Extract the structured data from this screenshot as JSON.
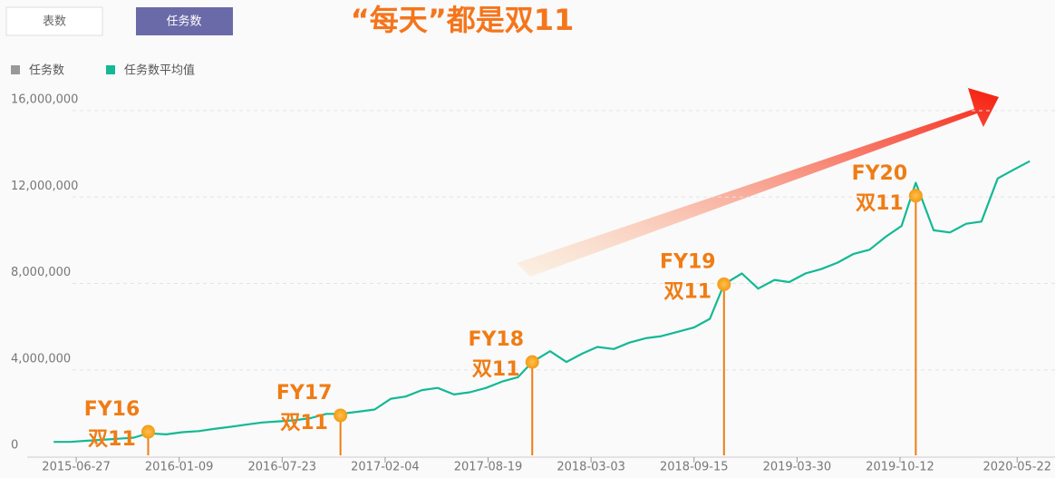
{
  "tabs": [
    "表数",
    "任务数"
  ],
  "selected_tab": 1,
  "chart_data": {
    "type": "line",
    "title": "“每天”都是双11",
    "legend": [
      {
        "name": "任务数",
        "color": "#999999"
      },
      {
        "name": "任务数平均值",
        "color": "#13b994"
      }
    ],
    "x": [
      "2015-05-15",
      "2015-06-15",
      "2015-07-15",
      "2015-08-15",
      "2015-09-15",
      "2015-10-15",
      "2015-11-11",
      "2015-12-15",
      "2016-01-15",
      "2016-02-15",
      "2016-03-15",
      "2016-04-15",
      "2016-05-15",
      "2016-06-15",
      "2016-07-15",
      "2016-08-15",
      "2016-09-15",
      "2016-10-15",
      "2016-11-11",
      "2016-12-15",
      "2017-01-15",
      "2017-02-15",
      "2017-03-15",
      "2017-04-15",
      "2017-05-15",
      "2017-06-15",
      "2017-07-15",
      "2017-08-15",
      "2017-09-15",
      "2017-10-15",
      "2017-11-11",
      "2017-12-15",
      "2018-01-15",
      "2018-02-15",
      "2018-03-15",
      "2018-04-15",
      "2018-05-15",
      "2018-06-15",
      "2018-07-15",
      "2018-08-15",
      "2018-09-15",
      "2018-10-15",
      "2018-11-11",
      "2018-12-15",
      "2019-01-15",
      "2019-02-15",
      "2019-03-15",
      "2019-04-15",
      "2019-05-15",
      "2019-06-15",
      "2019-07-15",
      "2019-08-15",
      "2019-09-15",
      "2019-10-15",
      "2019-11-11",
      "2019-12-15",
      "2020-01-15",
      "2020-02-15",
      "2020-03-15",
      "2020-04-15",
      "2020-05-15",
      "2020-06-15"
    ],
    "series": [
      {
        "color": "#13b994",
        "values": [
          200000,
          200000,
          250000,
          300000,
          350000,
          400000,
          600000,
          550000,
          650000,
          700000,
          800000,
          900000,
          1000000,
          1100000,
          1150000,
          1200000,
          1300000,
          1500000,
          1500000,
          1600000,
          1700000,
          2200000,
          2300000,
          2600000,
          2700000,
          2400000,
          2500000,
          2700000,
          3000000,
          3200000,
          3900000,
          4400000,
          3900000,
          4300000,
          4600000,
          4500000,
          4800000,
          5000000,
          5100000,
          5300000,
          5500000,
          5900000,
          7500000,
          8000000,
          7300000,
          7700000,
          7600000,
          8000000,
          8200000,
          8500000,
          8900000,
          9100000,
          9700000,
          10200000,
          12200000,
          10000000,
          9900000,
          10300000,
          10400000,
          12400000,
          12800000,
          13200000
        ]
      }
    ],
    "xlim": [
      "2015-03-05",
      "2020-08-02"
    ],
    "xticks": [
      "2015-06-27",
      "2016-01-09",
      "2016-07-23",
      "2017-02-04",
      "2017-08-19",
      "2018-03-03",
      "2018-09-15",
      "2019-03-30",
      "2019-10-12",
      "2020-05-22"
    ],
    "ylim": [
      0,
      16000000
    ],
    "yticks": [
      0,
      {
        "value": 4000000,
        "label": "4,000,000"
      },
      {
        "value": 8000000,
        "label": "8,000,000"
      },
      {
        "value": 12000000,
        "label": "12,000,000"
      },
      {
        "value": 16000000,
        "label": "16,000,000"
      }
    ],
    "grid": true,
    "annotations": [
      {
        "x": "2015-11-11",
        "value": 670000,
        "label": "FY16",
        "label2": "双11"
      },
      {
        "x": "2016-11-11",
        "value": 1430000,
        "label": "FY17",
        "label2": "双11"
      },
      {
        "x": "2017-11-11",
        "value": 3900000,
        "label": "FY18",
        "label2": "双11"
      },
      {
        "x": "2018-11-11",
        "value": 7500000,
        "label": "FY19",
        "label2": "双11"
      },
      {
        "x": "2019-11-11",
        "value": 11600000,
        "label": "FY20",
        "label2": "双11"
      }
    ]
  }
}
